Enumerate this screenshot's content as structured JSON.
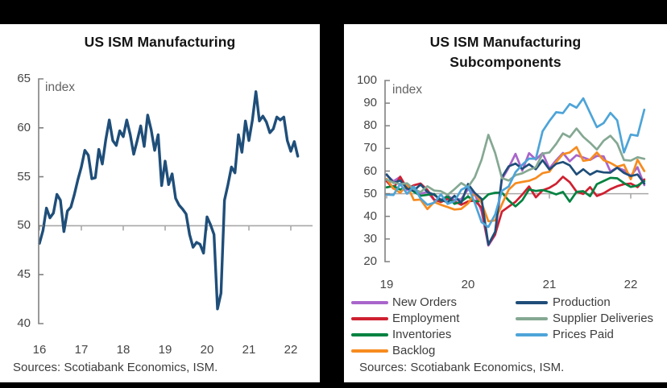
{
  "canvas": {
    "background": "#000000",
    "panel_background": "#ffffff",
    "axis_color": "#808080",
    "reference_line_color": "#a8a8a8"
  },
  "chart_data": [
    {
      "type": "line",
      "title": "US ISM Manufacturing",
      "title_lines": [
        "US ISM Manufacturing"
      ],
      "inner_axis_label": "index",
      "sources": "Sources: Scotiabank Economics, ISM.",
      "x_tick_labels": [
        "16",
        "17",
        "18",
        "19",
        "20",
        "21",
        "22"
      ],
      "y_tick_labels": [
        "40",
        "45",
        "50",
        "55",
        "60",
        "65"
      ],
      "ylim": [
        40,
        65
      ],
      "reference_line_y": 50,
      "grid": "off",
      "points_per_year": 12,
      "series": [
        {
          "name": "US ISM Manufacturing",
          "color": "#1f4e79",
          "stroke_width": 3.4,
          "values": [
            48.2,
            49.5,
            51.8,
            50.8,
            51.3,
            53.2,
            52.6,
            49.4,
            51.5,
            51.9,
            53.2,
            54.7,
            56.0,
            57.7,
            57.2,
            54.8,
            54.9,
            57.8,
            56.3,
            58.8,
            60.8,
            58.7,
            58.2,
            59.7,
            59.1,
            60.8,
            59.3,
            57.3,
            58.7,
            60.2,
            58.1,
            61.3,
            59.8,
            57.7,
            59.3,
            54.1,
            56.6,
            54.2,
            55.3,
            52.8,
            52.1,
            51.7,
            51.2,
            49.1,
            47.8,
            48.3,
            48.1,
            47.2,
            50.9,
            50.1,
            49.1,
            41.5,
            43.1,
            52.6,
            54.2,
            56.0,
            55.4,
            59.3,
            57.5,
            60.7,
            58.7,
            60.8,
            63.7,
            60.7,
            61.2,
            60.6,
            59.5,
            59.9,
            61.1,
            60.8,
            61.1,
            58.7,
            57.6,
            58.6,
            57.1
          ]
        }
      ]
    },
    {
      "type": "line",
      "title": "US ISM Manufacturing Subcomponents",
      "title_lines": [
        "US ISM Manufacturing",
        "Subcomponents"
      ],
      "inner_axis_label": "index",
      "sources": "Sources: Scotiabank Economics, ISM.",
      "x_tick_labels": [
        "19",
        "20",
        "21",
        "22"
      ],
      "y_tick_labels": [
        "20",
        "30",
        "40",
        "50",
        "60",
        "70",
        "80",
        "90",
        "100"
      ],
      "ylim": [
        20,
        100
      ],
      "reference_line_y": 50,
      "grid": "off",
      "points_per_year": 12,
      "legend_columns": [
        [
          "New Orders",
          "Employment",
          "Inventories",
          "Backlog"
        ],
        [
          "Production",
          "Supplier Deliveries",
          "Prices Paid"
        ]
      ],
      "series": [
        {
          "name": "New Orders",
          "color": "#a965cb",
          "stroke_width": 2.7,
          "values": [
            58.2,
            55.5,
            57.4,
            51.7,
            52.7,
            50.0,
            50.8,
            47.2,
            47.3,
            49.1,
            47.2,
            47.6,
            52.0,
            49.8,
            42.2,
            27.1,
            31.8,
            56.4,
            61.5,
            67.6,
            60.2,
            67.9,
            65.1,
            67.9,
            61.1,
            64.8,
            68.0,
            64.3,
            67.0,
            66.0,
            64.9,
            66.7,
            66.5,
            59.8,
            61.5,
            60.4,
            57.9,
            61.7,
            53.8
          ]
        },
        {
          "name": "Employment",
          "color": "#cf2030",
          "stroke_width": 2.7,
          "values": [
            55.5,
            52.3,
            57.5,
            52.4,
            53.7,
            54.5,
            51.7,
            47.4,
            46.3,
            47.7,
            46.6,
            45.1,
            46.6,
            46.9,
            43.8,
            27.5,
            32.1,
            42.1,
            44.3,
            46.4,
            49.6,
            53.2,
            48.4,
            51.5,
            52.6,
            54.4,
            57.5,
            55.1,
            50.9,
            49.9,
            52.9,
            49.0,
            50.2,
            52.0,
            53.3,
            54.2,
            54.5,
            52.9,
            56.3
          ]
        },
        {
          "name": "Inventories",
          "color": "#008240",
          "stroke_width": 2.7,
          "values": [
            52.8,
            53.4,
            51.8,
            52.9,
            50.9,
            49.1,
            49.5,
            49.9,
            46.9,
            48.9,
            45.5,
            46.5,
            48.8,
            46.5,
            46.9,
            49.7,
            50.4,
            50.5,
            47.0,
            44.4,
            47.1,
            51.9,
            51.2,
            51.6,
            50.8,
            49.7,
            50.8,
            46.5,
            50.8,
            51.1,
            48.9,
            54.2,
            55.6,
            57.0,
            56.8,
            54.7,
            53.0,
            53.6,
            55.5
          ]
        },
        {
          "name": "Backlog",
          "color": "#f68b1f",
          "stroke_width": 2.7,
          "values": [
            56.5,
            52.3,
            50.4,
            53.9,
            47.2,
            47.4,
            43.2,
            46.3,
            45.1,
            44.1,
            43.0,
            43.3,
            45.7,
            50.3,
            45.9,
            37.8,
            38.2,
            45.3,
            51.8,
            54.6,
            55.2,
            55.7,
            56.9,
            59.1,
            59.7,
            64.0,
            67.5,
            68.2,
            70.6,
            64.5,
            65.0,
            68.2,
            64.8,
            63.6,
            61.9,
            62.8,
            56.4,
            65.0,
            60.0
          ]
        },
        {
          "name": "Production",
          "color": "#1f4e79",
          "stroke_width": 2.7,
          "values": [
            58.5,
            54.8,
            55.8,
            52.3,
            51.3,
            54.1,
            50.8,
            49.5,
            47.3,
            46.2,
            49.1,
            45.9,
            54.3,
            50.3,
            47.7,
            27.5,
            33.2,
            57.3,
            62.1,
            63.3,
            61.0,
            63.0,
            60.8,
            64.8,
            60.7,
            63.2,
            64.0,
            62.5,
            58.5,
            60.8,
            58.4,
            60.0,
            59.4,
            59.3,
            61.5,
            59.2,
            57.8,
            58.5,
            54.5
          ]
        },
        {
          "name": "Supplier Deliveries",
          "color": "#85a893",
          "stroke_width": 2.7,
          "values": [
            56.2,
            54.9,
            54.2,
            54.6,
            52.0,
            50.7,
            53.3,
            51.4,
            51.1,
            49.5,
            52.0,
            54.7,
            52.9,
            57.3,
            65.0,
            76.0,
            68.0,
            56.9,
            55.8,
            58.2,
            59.0,
            60.5,
            61.7,
            67.7,
            68.2,
            72.0,
            76.6,
            75.0,
            78.8,
            75.1,
            72.5,
            69.5,
            73.4,
            75.6,
            72.2,
            64.9,
            64.6,
            66.1,
            65.4
          ]
        },
        {
          "name": "Prices Paid",
          "color": "#4da4d8",
          "stroke_width": 2.7,
          "values": [
            49.6,
            49.4,
            54.3,
            50.0,
            53.2,
            47.9,
            45.1,
            46.0,
            49.7,
            45.5,
            46.7,
            51.7,
            53.3,
            45.9,
            37.4,
            35.3,
            40.8,
            51.3,
            53.2,
            59.5,
            62.8,
            65.5,
            65.4,
            77.6,
            82.1,
            86.0,
            85.6,
            89.6,
            88.0,
            92.1,
            85.7,
            79.4,
            81.2,
            85.7,
            82.4,
            68.2,
            76.1,
            75.6,
            87.1
          ]
        }
      ]
    }
  ]
}
